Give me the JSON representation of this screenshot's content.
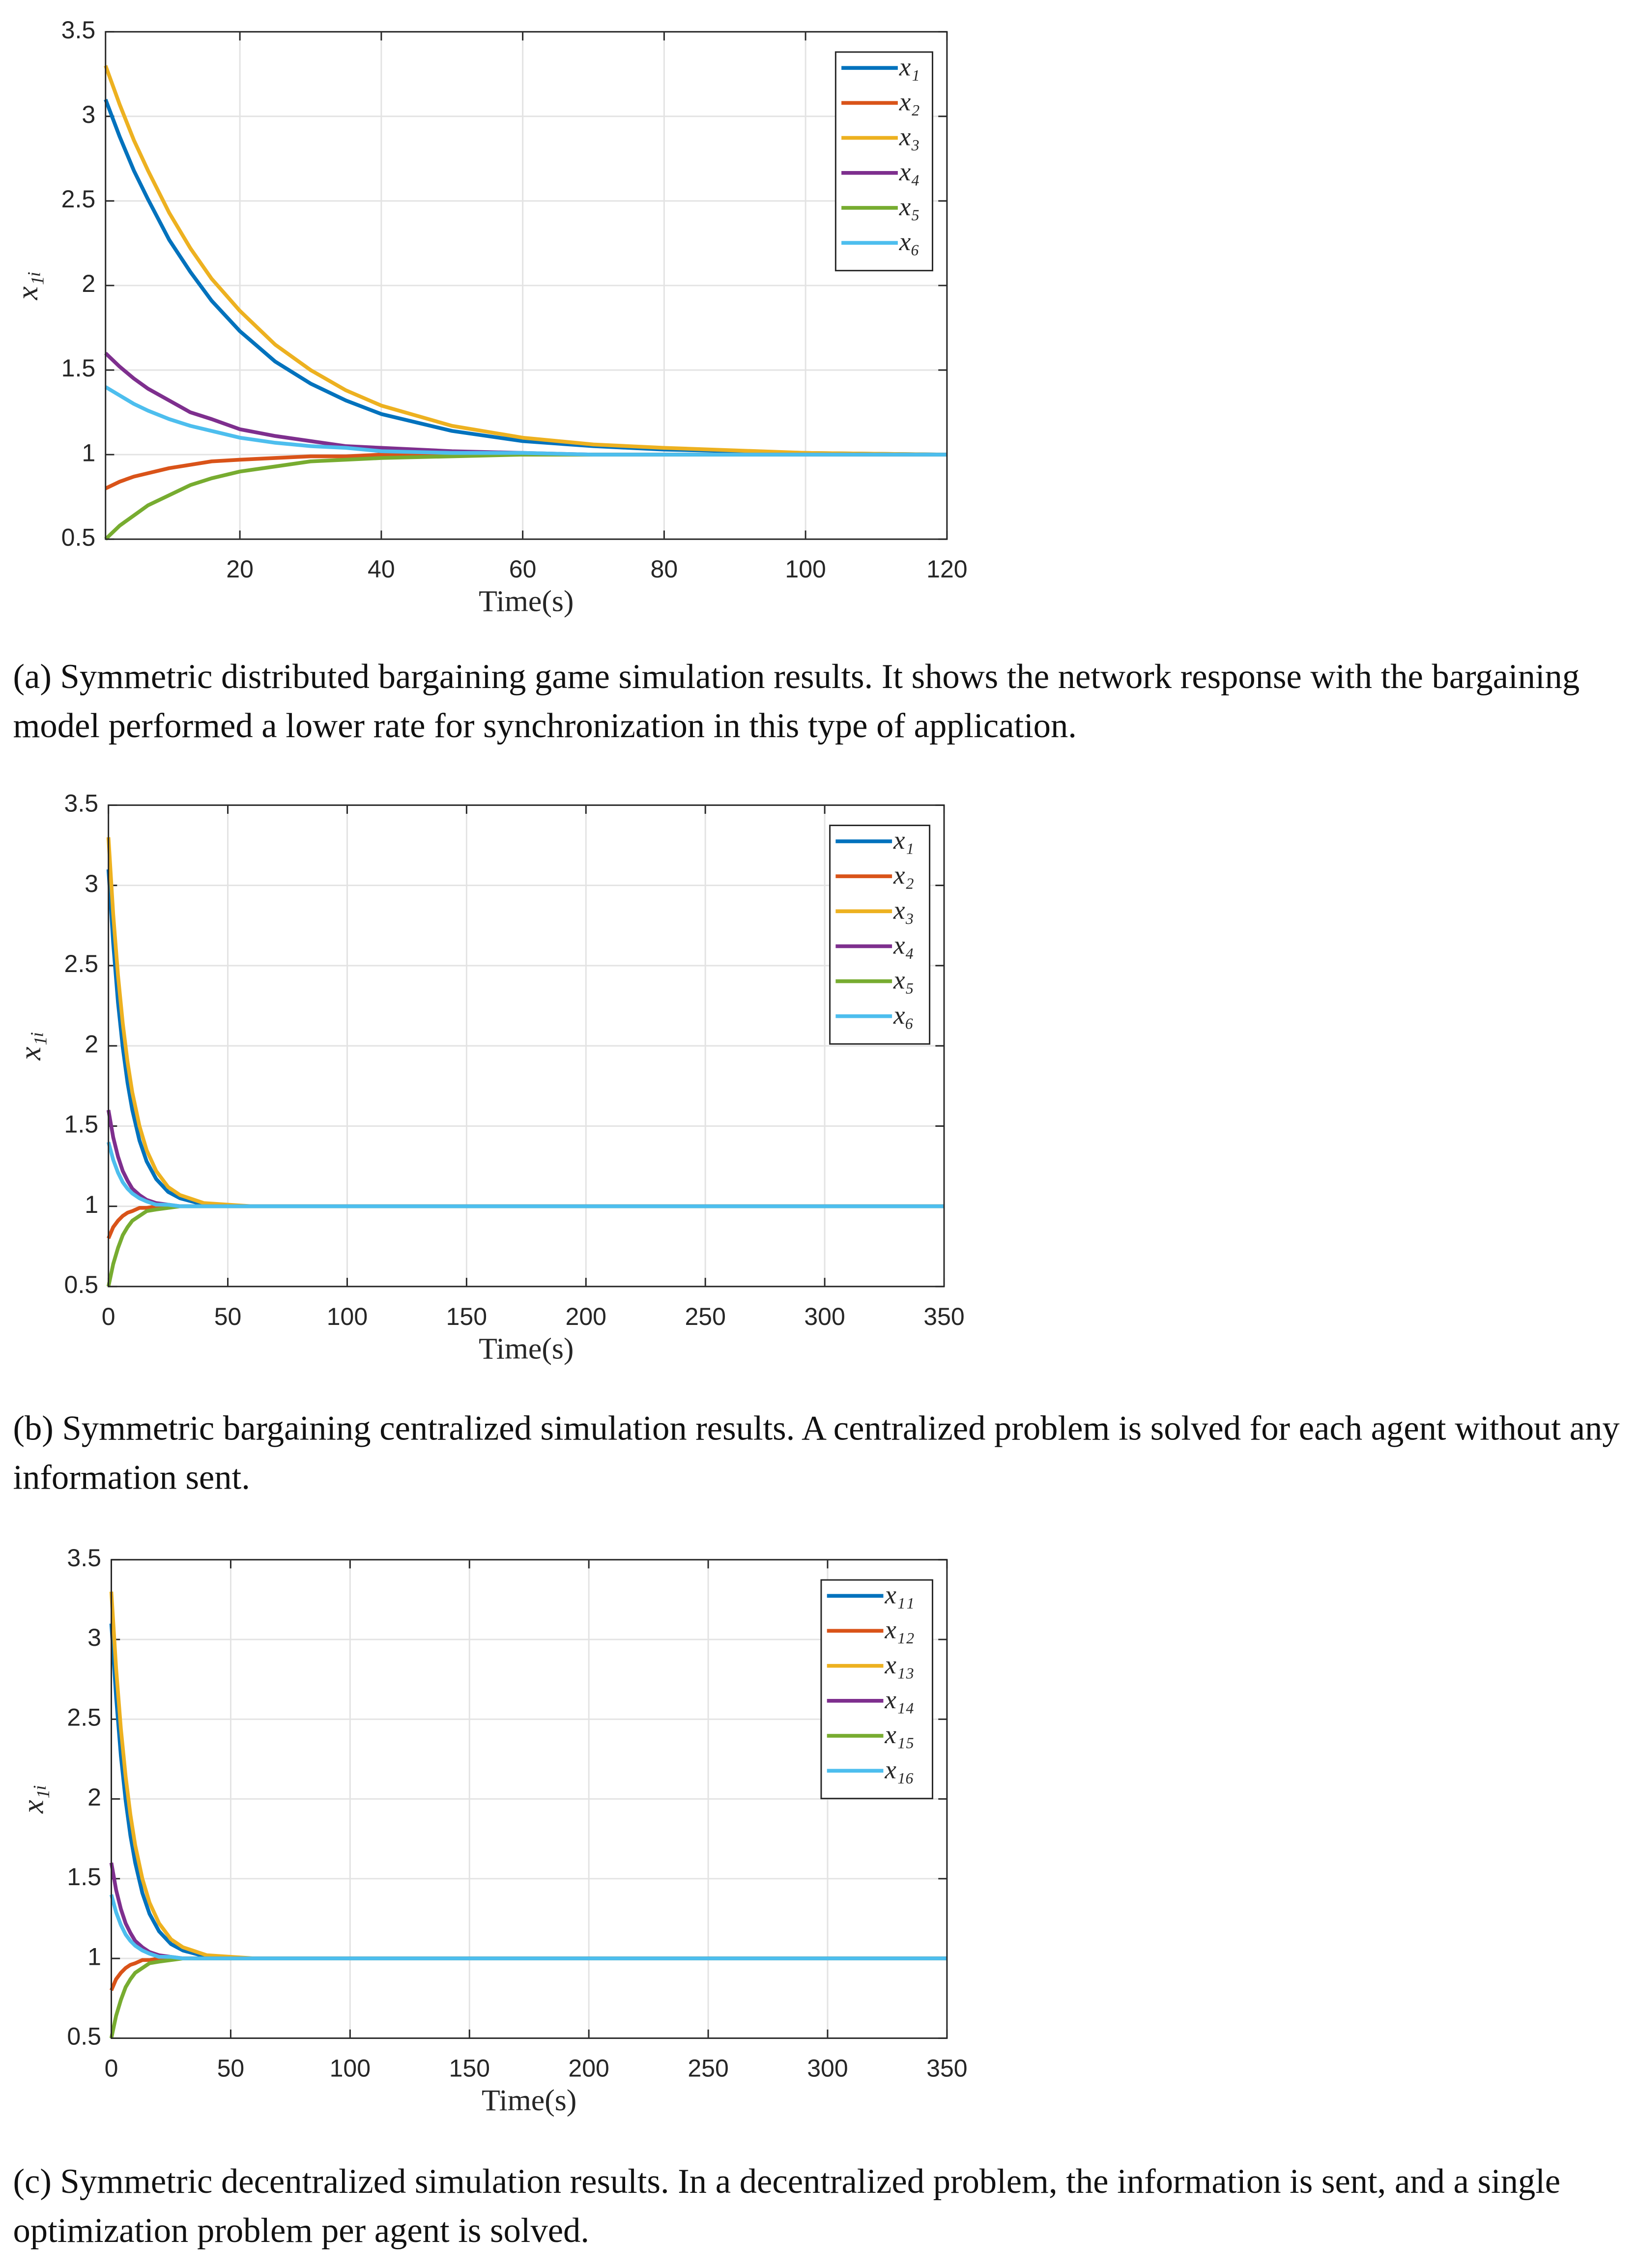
{
  "chart_data": [
    {
      "type": "line",
      "xlabel": "Time(s)",
      "ylabel": "x₁ᵢ",
      "caption": "(a) Symmetric distributed bargaining game simulation results. It shows the network response with the bargaining model performed a lower rate for synchronization in this type of application.",
      "xlim": [
        1,
        120
      ],
      "ylim": [
        0.5,
        3.5
      ],
      "xticks": [
        20,
        40,
        60,
        80,
        100,
        120
      ],
      "yticks": [
        0.5,
        1,
        1.5,
        2,
        2.5,
        3,
        3.5
      ],
      "grid": true,
      "legend": "northeast",
      "x": [
        1,
        3,
        5,
        7,
        10,
        13,
        16,
        20,
        25,
        30,
        35,
        40,
        50,
        60,
        70,
        80,
        100,
        120
      ],
      "series": [
        {
          "name": "x₁",
          "color": "#0072BD",
          "values": [
            3.1,
            2.88,
            2.68,
            2.51,
            2.27,
            2.08,
            1.91,
            1.73,
            1.55,
            1.42,
            1.32,
            1.24,
            1.14,
            1.08,
            1.05,
            1.03,
            1.01,
            1.0
          ]
        },
        {
          "name": "x₂",
          "color": "#D95319",
          "values": [
            0.8,
            0.84,
            0.87,
            0.89,
            0.92,
            0.94,
            0.96,
            0.97,
            0.98,
            0.99,
            0.99,
            1.0,
            1.0,
            1.0,
            1.0,
            1.0,
            1.0,
            1.0
          ]
        },
        {
          "name": "x₃",
          "color": "#EDB120",
          "values": [
            3.3,
            3.07,
            2.86,
            2.68,
            2.43,
            2.22,
            2.04,
            1.85,
            1.65,
            1.5,
            1.38,
            1.29,
            1.17,
            1.1,
            1.06,
            1.04,
            1.01,
            1.0
          ]
        },
        {
          "name": "x₄",
          "color": "#7E2F8E",
          "values": [
            1.6,
            1.52,
            1.45,
            1.39,
            1.32,
            1.25,
            1.21,
            1.15,
            1.11,
            1.08,
            1.05,
            1.04,
            1.02,
            1.01,
            1.0,
            1.0,
            1.0,
            1.0
          ]
        },
        {
          "name": "x₅",
          "color": "#77AC30",
          "values": [
            0.5,
            0.58,
            0.64,
            0.7,
            0.76,
            0.82,
            0.86,
            0.9,
            0.93,
            0.96,
            0.97,
            0.98,
            0.99,
            1.0,
            1.0,
            1.0,
            1.0,
            1.0
          ]
        },
        {
          "name": "x₆",
          "color": "#4DBEEE",
          "values": [
            1.4,
            1.35,
            1.3,
            1.26,
            1.21,
            1.17,
            1.14,
            1.1,
            1.07,
            1.05,
            1.04,
            1.02,
            1.01,
            1.01,
            1.0,
            1.0,
            1.0,
            1.0
          ]
        }
      ]
    },
    {
      "type": "line",
      "xlabel": "Time(s)",
      "ylabel": "x₁ᵢ",
      "caption": "(b) Symmetric bargaining centralized simulation results. A centralized problem is solved for each agent without any information sent.",
      "xlim": [
        0,
        350
      ],
      "ylim": [
        0.5,
        3.5
      ],
      "xticks": [
        0,
        50,
        100,
        150,
        200,
        250,
        300,
        350
      ],
      "yticks": [
        0.5,
        1,
        1.5,
        2,
        2.5,
        3,
        3.5
      ],
      "grid": true,
      "legend": "northeast",
      "x": [
        0,
        2,
        4,
        6,
        8,
        10,
        13,
        16,
        20,
        25,
        30,
        40,
        50,
        60,
        80,
        100,
        150,
        200,
        250,
        300,
        350
      ],
      "series": [
        {
          "name": "x₁",
          "color": "#0072BD",
          "values": [
            3.1,
            2.64,
            2.27,
            1.99,
            1.77,
            1.6,
            1.41,
            1.28,
            1.17,
            1.09,
            1.05,
            1.01,
            1.0,
            1.0,
            1.0,
            1.0,
            1.0,
            1.0,
            1.0,
            1.0,
            1.0
          ]
        },
        {
          "name": "x₂",
          "color": "#D95319",
          "values": [
            0.8,
            0.87,
            0.91,
            0.94,
            0.96,
            0.97,
            0.99,
            0.99,
            1.0,
            1.0,
            1.0,
            1.0,
            1.0,
            1.0,
            1.0,
            1.0,
            1.0,
            1.0,
            1.0,
            1.0,
            1.0
          ]
        },
        {
          "name": "x₃",
          "color": "#EDB120",
          "values": [
            3.3,
            2.82,
            2.44,
            2.14,
            1.9,
            1.71,
            1.5,
            1.35,
            1.22,
            1.12,
            1.07,
            1.02,
            1.01,
            1.0,
            1.0,
            1.0,
            1.0,
            1.0,
            1.0,
            1.0,
            1.0
          ]
        },
        {
          "name": "x₄",
          "color": "#7E2F8E",
          "values": [
            1.6,
            1.43,
            1.31,
            1.22,
            1.16,
            1.11,
            1.07,
            1.04,
            1.02,
            1.01,
            1.0,
            1.0,
            1.0,
            1.0,
            1.0,
            1.0,
            1.0,
            1.0,
            1.0,
            1.0,
            1.0
          ]
        },
        {
          "name": "x₅",
          "color": "#77AC30",
          "values": [
            0.5,
            0.64,
            0.74,
            0.82,
            0.87,
            0.91,
            0.94,
            0.97,
            0.98,
            0.99,
            1.0,
            1.0,
            1.0,
            1.0,
            1.0,
            1.0,
            1.0,
            1.0,
            1.0,
            1.0,
            1.0
          ]
        },
        {
          "name": "x₆",
          "color": "#4DBEEE",
          "values": [
            1.4,
            1.29,
            1.21,
            1.15,
            1.11,
            1.08,
            1.05,
            1.03,
            1.01,
            1.01,
            1.0,
            1.0,
            1.0,
            1.0,
            1.0,
            1.0,
            1.0,
            1.0,
            1.0,
            1.0,
            1.0
          ]
        }
      ]
    },
    {
      "type": "line",
      "xlabel": "Time(s)",
      "ylabel": "x₁ᵢ",
      "caption": "(c) Symmetric decentralized simulation results. In a decentralized problem, the information is sent, and a single optimization problem per agent is solved.",
      "xlim": [
        0,
        350
      ],
      "ylim": [
        0.5,
        3.5
      ],
      "xticks": [
        0,
        50,
        100,
        150,
        200,
        250,
        300,
        350
      ],
      "yticks": [
        0.5,
        1,
        1.5,
        2,
        2.5,
        3,
        3.5
      ],
      "grid": true,
      "legend": "northeast",
      "x": [
        0,
        2,
        4,
        6,
        8,
        10,
        13,
        16,
        20,
        25,
        30,
        40,
        50,
        60,
        80,
        100,
        150,
        200,
        250,
        300,
        350
      ],
      "series": [
        {
          "name": "x₁₁",
          "color": "#0072BD",
          "values": [
            3.1,
            2.64,
            2.27,
            1.99,
            1.77,
            1.6,
            1.41,
            1.28,
            1.17,
            1.09,
            1.05,
            1.01,
            1.0,
            1.0,
            1.0,
            1.0,
            1.0,
            1.0,
            1.0,
            1.0,
            1.0
          ]
        },
        {
          "name": "x₁₂",
          "color": "#D95319",
          "values": [
            0.8,
            0.87,
            0.91,
            0.94,
            0.96,
            0.97,
            0.99,
            0.99,
            1.0,
            1.0,
            1.0,
            1.0,
            1.0,
            1.0,
            1.0,
            1.0,
            1.0,
            1.0,
            1.0,
            1.0,
            1.0
          ]
        },
        {
          "name": "x₁₃",
          "color": "#EDB120",
          "values": [
            3.3,
            2.82,
            2.44,
            2.14,
            1.9,
            1.71,
            1.5,
            1.35,
            1.22,
            1.12,
            1.07,
            1.02,
            1.01,
            1.0,
            1.0,
            1.0,
            1.0,
            1.0,
            1.0,
            1.0,
            1.0
          ]
        },
        {
          "name": "x₁₄",
          "color": "#7E2F8E",
          "values": [
            1.6,
            1.43,
            1.31,
            1.22,
            1.16,
            1.11,
            1.07,
            1.04,
            1.02,
            1.01,
            1.0,
            1.0,
            1.0,
            1.0,
            1.0,
            1.0,
            1.0,
            1.0,
            1.0,
            1.0,
            1.0
          ]
        },
        {
          "name": "x₁₅",
          "color": "#77AC30",
          "values": [
            0.5,
            0.64,
            0.74,
            0.82,
            0.87,
            0.91,
            0.94,
            0.97,
            0.98,
            0.99,
            1.0,
            1.0,
            1.0,
            1.0,
            1.0,
            1.0,
            1.0,
            1.0,
            1.0,
            1.0,
            1.0
          ]
        },
        {
          "name": "x₁₆",
          "color": "#4DBEEE",
          "values": [
            1.4,
            1.29,
            1.21,
            1.15,
            1.11,
            1.08,
            1.05,
            1.03,
            1.01,
            1.01,
            1.0,
            1.0,
            1.0,
            1.0,
            1.0,
            1.0,
            1.0,
            1.0,
            1.0,
            1.0,
            1.0
          ]
        }
      ]
    }
  ]
}
